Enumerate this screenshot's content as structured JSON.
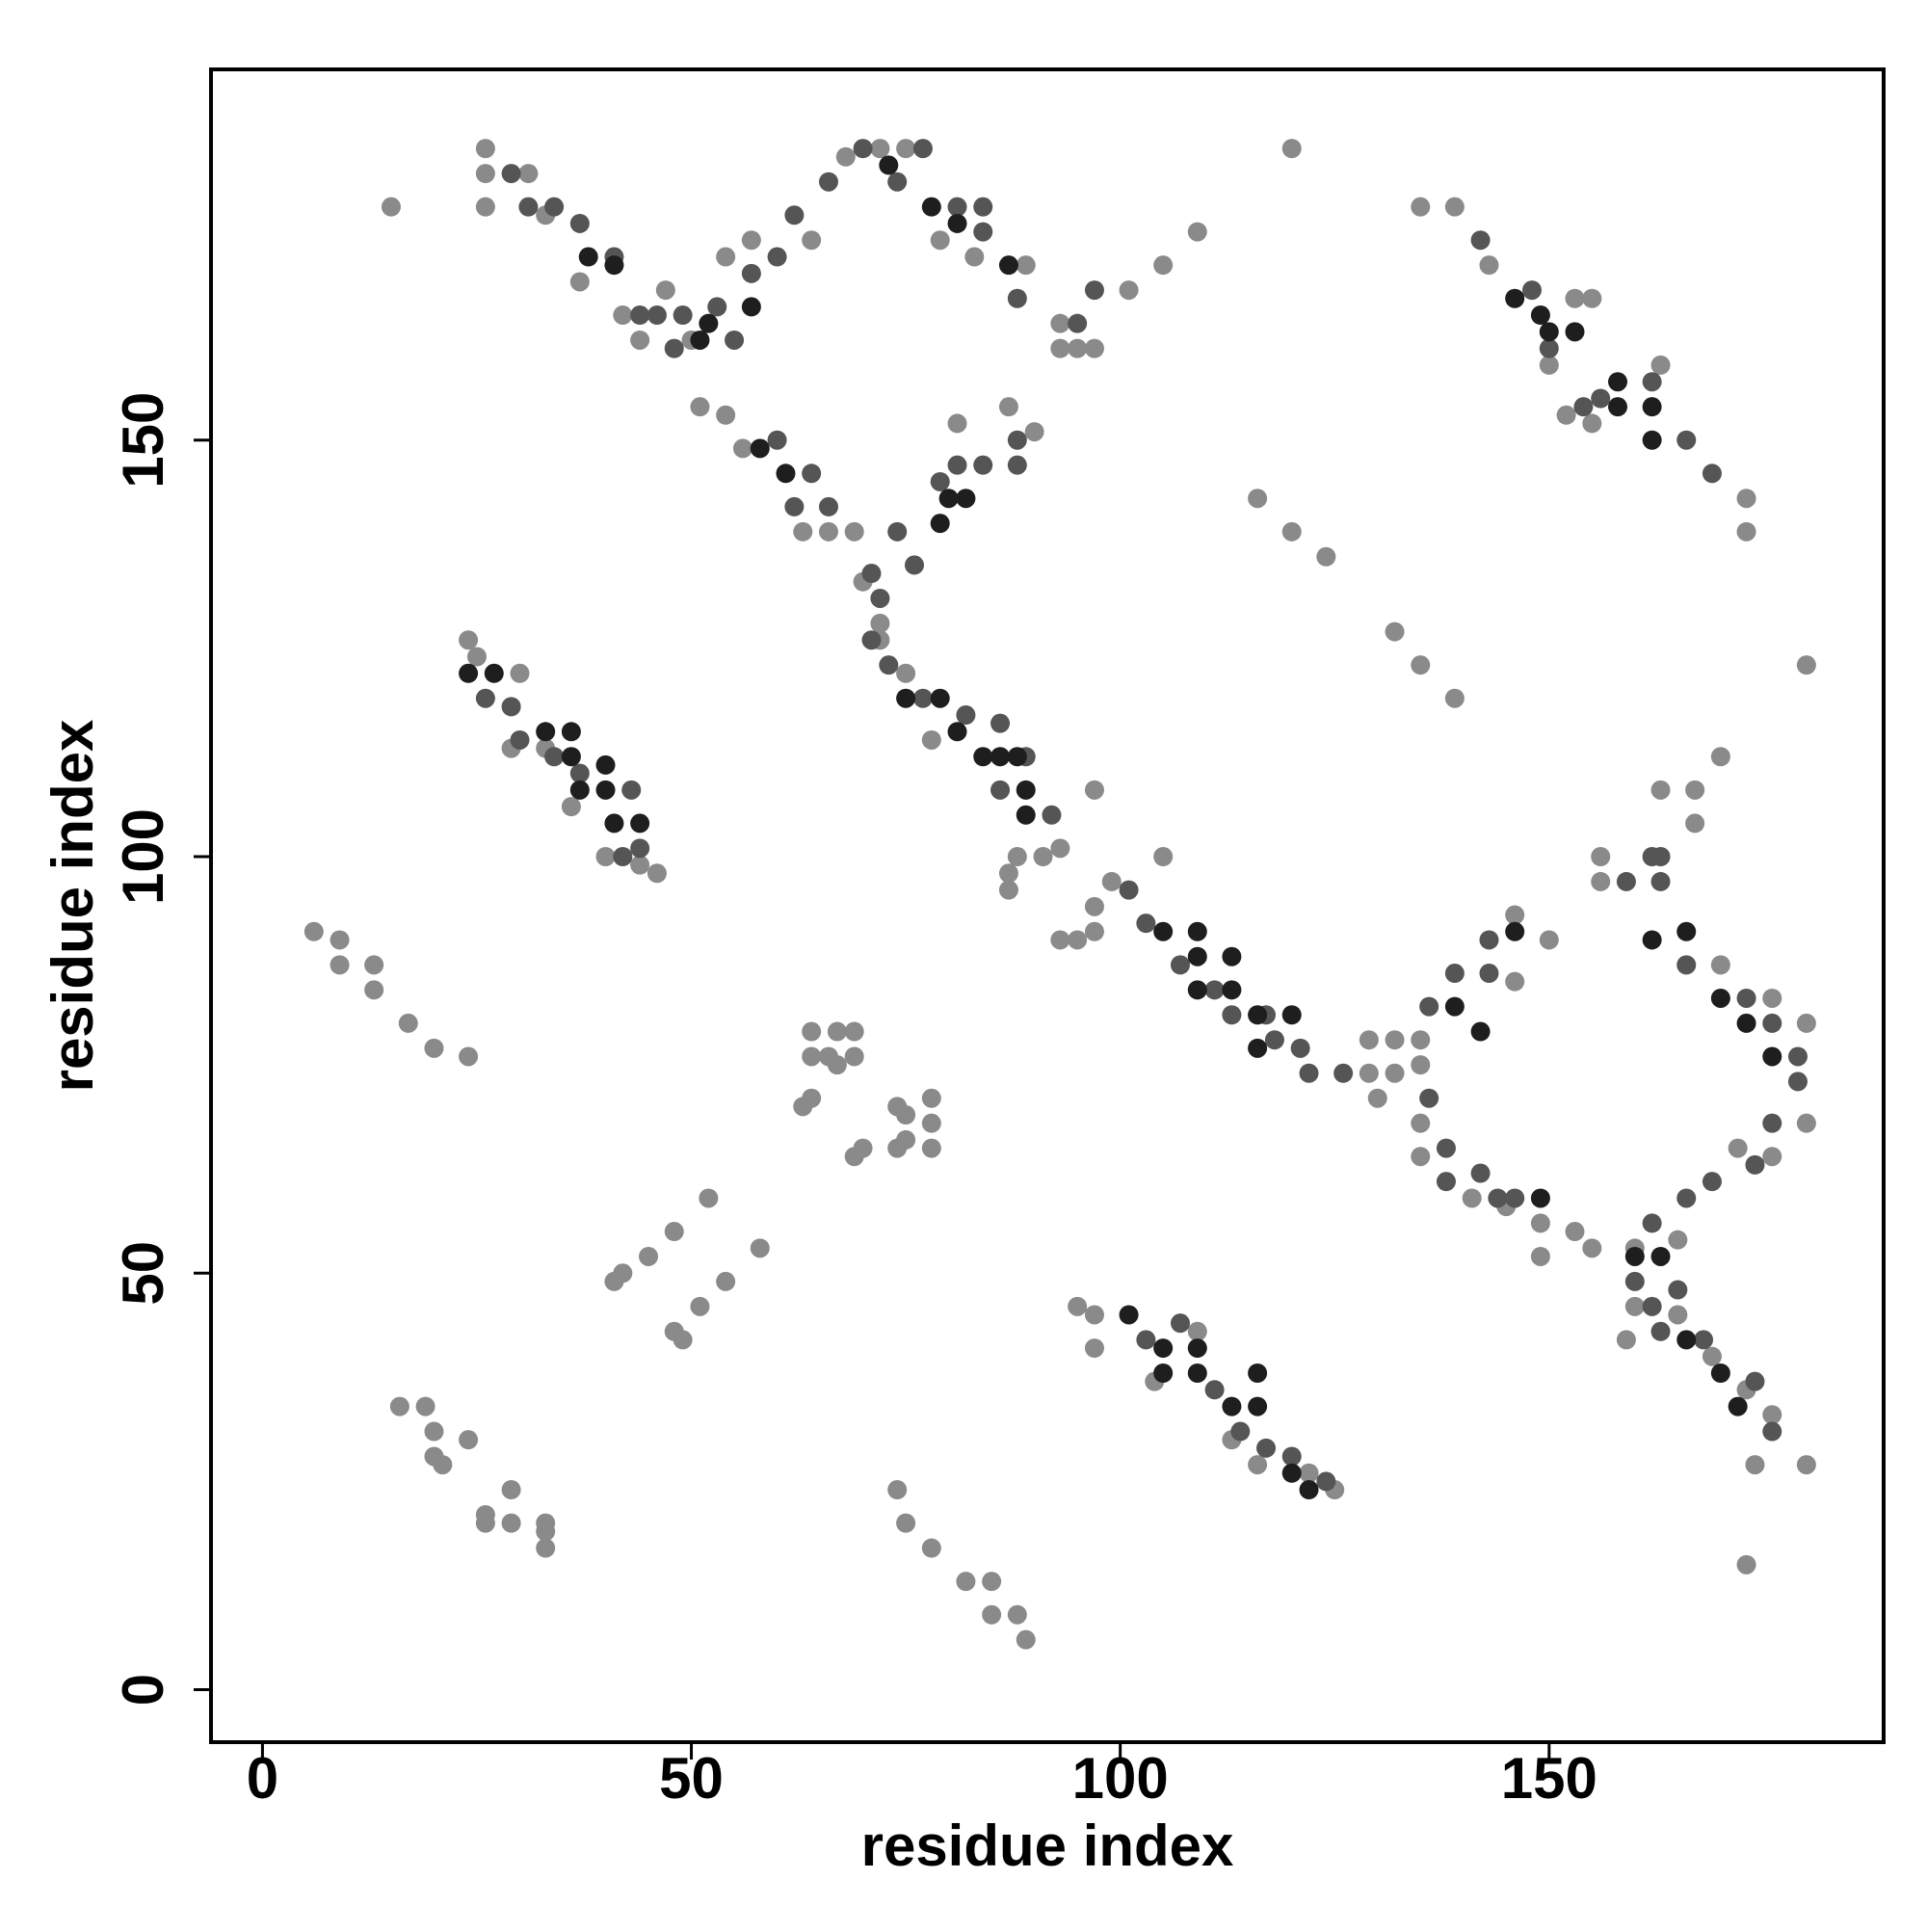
{
  "chart_data": {
    "type": "scatter",
    "xlabel": "residue index",
    "ylabel": "residue index",
    "xlim": [
      -6,
      189
    ],
    "ylim": [
      -6.3,
      194.5
    ],
    "xticks": [
      0,
      50,
      100,
      150
    ],
    "yticks": [
      0,
      50,
      100,
      150
    ],
    "series": [
      {
        "color": "#8a8a8a",
        "x": [
          15,
          26,
          26,
          26,
          31,
          33,
          37,
          42,
          44,
          47,
          50,
          51,
          54,
          56,
          54,
          57,
          64,
          68,
          72,
          75,
          79,
          83,
          89,
          93,
          93,
          95,
          97,
          101,
          105,
          109,
          120,
          135,
          139,
          63,
          66,
          69,
          70,
          72,
          72,
          75,
          78,
          81,
          87,
          90,
          87,
          87,
          88,
          91,
          93,
          93,
          95,
          97,
          97,
          97,
          105,
          99,
          24,
          25,
          30,
          29,
          33,
          36,
          40,
          44,
          46,
          6,
          9,
          9,
          13,
          13,
          17,
          20,
          24,
          16,
          19,
          20,
          20,
          21,
          24,
          26,
          26,
          29,
          29,
          33,
          33,
          33,
          74,
          75,
          78,
          82,
          85,
          85,
          88,
          89,
          41,
          42,
          45,
          48,
          52,
          54,
          51,
          48,
          49,
          58,
          64,
          67,
          69,
          64,
          66,
          69,
          67,
          63,
          64,
          69,
          70,
          74,
          75,
          75,
          74,
          78,
          78,
          78,
          95,
          97,
          97,
          109,
          104,
          113,
          116,
          122,
          125,
          129,
          132,
          135,
          129,
          132,
          135,
          130,
          135,
          135,
          141,
          145,
          149,
          149,
          153,
          146,
          146,
          150,
          155,
          143,
          153,
          155,
          150,
          155,
          152,
          163,
          173,
          173,
          116,
          120,
          124,
          132,
          135,
          139,
          180,
          170,
          167,
          163,
          167,
          156,
          156,
          170,
          176,
          180,
          180,
          176,
          172,
          160,
          160,
          165,
          169,
          173,
          174,
          180,
          176,
          173,
          159,
          165
        ],
        "y": [
          178,
          185,
          182,
          178,
          182,
          177,
          169,
          165,
          162,
          168,
          162,
          154,
          153,
          149,
          172,
          174,
          174,
          184,
          185,
          185,
          174,
          172,
          171,
          164,
          161,
          161,
          161,
          168,
          171,
          175,
          185,
          178,
          178,
          139,
          139,
          139,
          133,
          128,
          126,
          122,
          114,
          152,
          154,
          151,
          98,
          96,
          100,
          100,
          101,
          90,
          90,
          94,
          91,
          108,
          100,
          97,
          126,
          124,
          122,
          113,
          113,
          106,
          100,
          99,
          98,
          91,
          90,
          87,
          87,
          84,
          80,
          77,
          76,
          34,
          34,
          31,
          28,
          27,
          30,
          20,
          21,
          20,
          24,
          19,
          17,
          20,
          24,
          20,
          17,
          13,
          13,
          9,
          9,
          6,
          49,
          50,
          52,
          55,
          59,
          49,
          46,
          43,
          42,
          53,
          79,
          79,
          79,
          76,
          76,
          76,
          75,
          70,
          71,
          64,
          65,
          70,
          69,
          66,
          65,
          68,
          65,
          71,
          46,
          45,
          41,
          43,
          37,
          30,
          27,
          26,
          24,
          78,
          78,
          78,
          74,
          74,
          75,
          71,
          68,
          64,
          59,
          58,
          56,
          52,
          55,
          85,
          93,
          90,
          53,
          171,
          167,
          167,
          159,
          152,
          153,
          159,
          143,
          139,
          143,
          139,
          136,
          127,
          123,
          119,
          123,
          112,
          108,
          108,
          104,
          100,
          97,
          87,
          83,
          80,
          68,
          64,
          65,
          53,
          46,
          54,
          40,
          36,
          27,
          27,
          33,
          15,
          42,
          45
        ]
      },
      {
        "color": "#555555",
        "x": [
          29,
          31,
          34,
          37,
          41,
          44,
          46,
          48,
          49,
          53,
          55,
          57,
          60,
          62,
          66,
          70,
          74,
          77,
          81,
          84,
          84,
          88,
          95,
          97,
          60,
          62,
          64,
          66,
          71,
          72,
          74,
          76,
          79,
          81,
          84,
          88,
          88,
          71,
          73,
          77,
          82,
          86,
          86,
          89,
          92,
          101,
          103,
          26,
          29,
          30,
          34,
          37,
          43,
          44,
          42,
          107,
          111,
          113,
          117,
          118,
          121,
          122,
          126,
          103,
          107,
          111,
          114,
          117,
          120,
          124,
          142,
          148,
          150,
          154,
          156,
          162,
          166,
          169,
          136,
          139,
          143,
          143,
          136,
          138,
          138,
          142,
          144,
          146,
          159,
          163,
          163,
          166,
          173,
          176,
          179,
          179,
          176,
          174,
          169,
          166,
          162,
          160,
          162,
          165,
          163,
          168,
          174,
          176,
          162
        ],
        "y": [
          182,
          178,
          178,
          176,
          172,
          165,
          165,
          161,
          165,
          166,
          162,
          170,
          172,
          177,
          181,
          185,
          181,
          185,
          178,
          175,
          178,
          167,
          164,
          168,
          150,
          142,
          146,
          142,
          134,
          131,
          139,
          135,
          145,
          147,
          147,
          147,
          150,
          126,
          123,
          119,
          117,
          116,
          108,
          112,
          105,
          96,
          92,
          119,
          118,
          114,
          112,
          110,
          108,
          101,
          100,
          87,
          84,
          81,
          81,
          78,
          77,
          74,
          74,
          42,
          44,
          36,
          31,
          29,
          28,
          25,
          174,
          168,
          161,
          154,
          155,
          157,
          150,
          146,
          82,
          86,
          86,
          90,
          71,
          65,
          61,
          62,
          59,
          59,
          97,
          100,
          97,
          87,
          83,
          80,
          73,
          76,
          68,
          63,
          61,
          59,
          56,
          49,
          46,
          48,
          43,
          42,
          37,
          31,
          100
        ]
      },
      {
        "color": "#1e1e1e",
        "x": [
          38,
          41,
          52,
          51,
          78,
          81,
          87,
          58,
          61,
          80,
          82,
          79,
          75,
          79,
          81,
          84,
          88,
          89,
          89,
          86,
          24,
          27,
          33,
          36,
          36,
          40,
          40,
          41,
          44,
          37,
          105,
          109,
          109,
          109,
          113,
          113,
          116,
          116,
          120,
          101,
          105,
          109,
          105,
          109,
          113,
          116,
          116,
          120,
          122,
          146,
          149,
          150,
          153,
          158,
          158,
          162,
          162,
          139,
          142,
          146,
          149,
          162,
          166,
          170,
          173,
          176,
          160,
          163,
          166,
          170,
          172,
          57,
          73
        ],
        "y": [
          172,
          171,
          164,
          162,
          178,
          176,
          171,
          149,
          146,
          143,
          143,
          140,
          119,
          119,
          115,
          112,
          112,
          108,
          105,
          112,
          122,
          122,
          115,
          115,
          112,
          111,
          108,
          104,
          104,
          108,
          91,
          91,
          88,
          84,
          88,
          84,
          81,
          77,
          81,
          45,
          41,
          41,
          38,
          38,
          34,
          38,
          34,
          26,
          24,
          167,
          165,
          163,
          163,
          157,
          154,
          154,
          150,
          82,
          79,
          91,
          59,
          90,
          91,
          83,
          80,
          76,
          52,
          52,
          42,
          38,
          34,
          166,
          183
        ]
      }
    ]
  }
}
